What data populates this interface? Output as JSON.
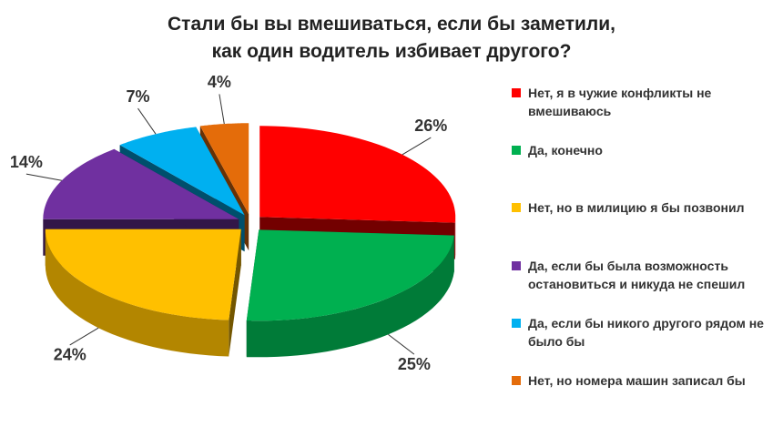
{
  "chart_data": {
    "type": "pie3d",
    "title": "Стали бы вы вмешиваться, если бы заметили, как один водитель избивает другого?",
    "categories": [
      "Нет, я в чужие конфликты не вмешиваюсь",
      "Да, конечно",
      "Нет, но в милицию я бы позвонил",
      "Да, если бы была возможность остановиться и никуда не спешил",
      "Да, если бы никого другого рядом не было бы",
      "Нет, но номера машин записал бы"
    ],
    "values": [
      26,
      25,
      24,
      14,
      7,
      4
    ],
    "value_labels": [
      "26%",
      "25%",
      "24%",
      "14%",
      "7%",
      "4%"
    ],
    "colors": [
      "#ff0000",
      "#00b050",
      "#ffc000",
      "#7030a0",
      "#00b0f0",
      "#e46c0a"
    ],
    "legend": "right"
  }
}
